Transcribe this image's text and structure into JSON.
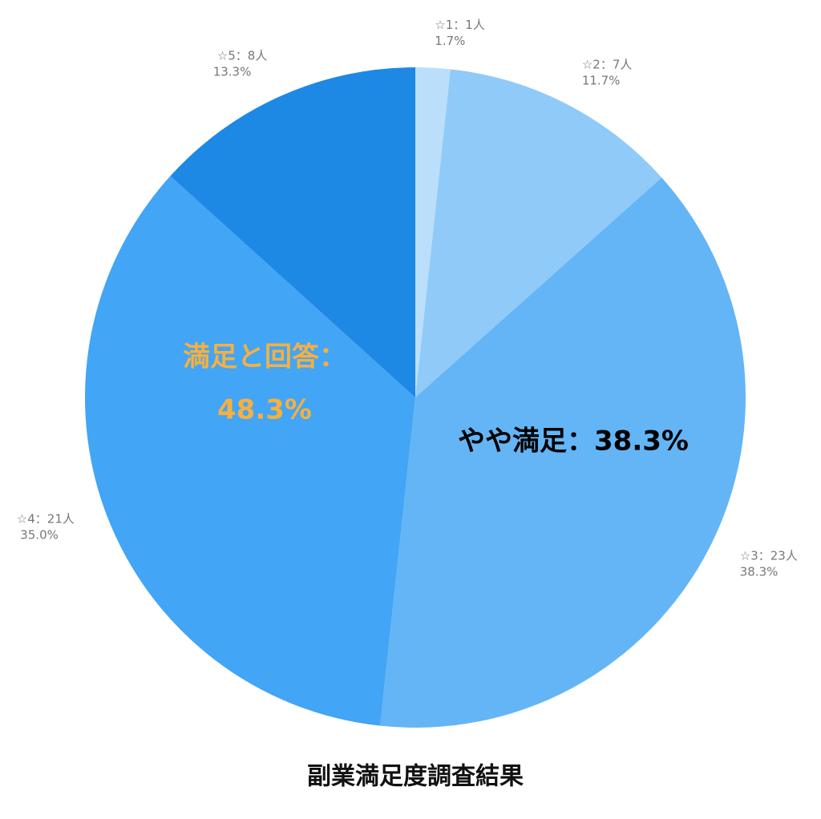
{
  "chart_data": {
    "type": "pie",
    "title": "副業満足度調査結果",
    "categories": [
      "☆1：1人",
      "☆2：7人",
      "☆3：23人",
      "☆4：21人",
      "☆5：8人"
    ],
    "values": [
      1.7,
      11.7,
      38.3,
      35.0,
      13.3
    ],
    "value_labels": [
      "1.7%",
      "11.7%",
      "38.3%",
      "35.0%",
      "13.3%"
    ],
    "colors": [
      "#bbdefb",
      "#90caf9",
      "#64b5f6",
      "#42a5f5",
      "#1e88e5"
    ],
    "annotations": [
      {
        "text": [
          "満足と回答：",
          "48.3%"
        ],
        "color": "#f5b041"
      },
      {
        "text": [
          "やや満足：38.3%"
        ],
        "color": "#000000"
      }
    ]
  }
}
